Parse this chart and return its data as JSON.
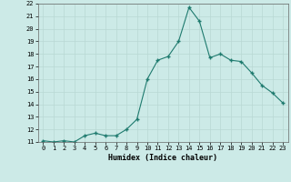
{
  "x": [
    0,
    1,
    2,
    3,
    4,
    5,
    6,
    7,
    8,
    9,
    10,
    11,
    12,
    13,
    14,
    15,
    16,
    17,
    18,
    19,
    20,
    21,
    22,
    23
  ],
  "y": [
    11.1,
    11.0,
    11.1,
    11.0,
    11.5,
    11.7,
    11.5,
    11.5,
    12.0,
    12.8,
    16.0,
    17.5,
    17.8,
    19.0,
    21.7,
    20.6,
    17.7,
    18.0,
    17.5,
    17.4,
    16.5,
    15.5,
    14.9,
    14.1
  ],
  "xlabel": "Humidex (Indice chaleur)",
  "line_color": "#1e7a6e",
  "marker_color": "#1e7a6e",
  "bg_color": "#cceae7",
  "grid_major_color": "#b8d8d4",
  "grid_minor_color": "#d8ecea",
  "ylim": [
    11,
    22
  ],
  "xlim": [
    -0.5,
    23.5
  ],
  "yticks": [
    11,
    12,
    13,
    14,
    15,
    16,
    17,
    18,
    19,
    20,
    21,
    22
  ],
  "xticks": [
    0,
    1,
    2,
    3,
    4,
    5,
    6,
    7,
    8,
    9,
    10,
    11,
    12,
    13,
    14,
    15,
    16,
    17,
    18,
    19,
    20,
    21,
    22,
    23
  ]
}
